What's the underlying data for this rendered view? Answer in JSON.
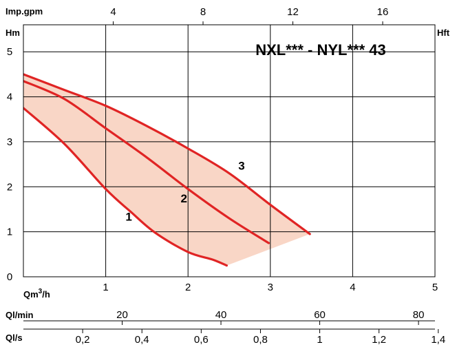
{
  "chart_data": {
    "type": "line",
    "title": "NXL*** - NYL*** 43",
    "ylabel_left": "Hm",
    "ylabel_right": "Hft",
    "xlabel": "Qm³/h",
    "xlabel_main": "Qm",
    "xlabel_sup": "3",
    "xlabel_tail": "/h",
    "xlim": [
      0,
      5
    ],
    "ylim": [
      0,
      5.6
    ],
    "grid": true,
    "x_ticks": [
      1,
      2,
      3,
      4,
      5
    ],
    "x_tick_labels": [
      "1",
      "2",
      "3",
      "4",
      "5"
    ],
    "y_ticks": [
      0,
      1,
      2,
      3,
      4,
      5
    ],
    "y_tick_labels": [
      "0",
      "1",
      "2",
      "3",
      "4",
      "5"
    ],
    "top_axis": {
      "label": "Imp.gpm",
      "ticks": [
        4,
        8,
        12,
        16
      ],
      "tick_labels": [
        "4",
        "8",
        "12",
        "16"
      ],
      "m3h_per_unit": 0.2728
    },
    "ql_min_axis": {
      "label": "Ql/min",
      "ticks": [
        20,
        40,
        60,
        80
      ],
      "tick_labels": [
        "20",
        "40",
        "60",
        "80"
      ],
      "m3h_per_unit": 0.06
    },
    "ql_s_axis": {
      "label": "Ql/s",
      "ticks": [
        0.2,
        0.4,
        0.6,
        0.8,
        1,
        1.2,
        1.4
      ],
      "tick_labels": [
        "0,2",
        "0,4",
        "0,6",
        "0,8",
        "1",
        "1,2",
        "1,4"
      ],
      "m3h_per_unit": 3.6
    },
    "series": [
      {
        "name": "1",
        "x": [
          0,
          0.5,
          1.0,
          1.3,
          1.6,
          2.0,
          2.3,
          2.47
        ],
        "y": [
          3.75,
          2.95,
          1.95,
          1.45,
          0.98,
          0.55,
          0.38,
          0.25
        ]
      },
      {
        "name": "2",
        "x": [
          0,
          0.5,
          1.0,
          1.5,
          2.0,
          2.5,
          2.98
        ],
        "y": [
          4.35,
          3.95,
          3.3,
          2.65,
          1.95,
          1.3,
          0.75
        ]
      },
      {
        "name": "3",
        "x": [
          0,
          0.5,
          1.0,
          1.5,
          2.0,
          2.5,
          3.0,
          3.48
        ],
        "y": [
          4.5,
          4.15,
          3.8,
          3.35,
          2.85,
          2.3,
          1.6,
          0.95
        ]
      }
    ],
    "series_label_pos": [
      {
        "x": 1.28,
        "y": 1.25
      },
      {
        "x": 1.95,
        "y": 1.65
      },
      {
        "x": 2.65,
        "y": 2.38
      }
    ],
    "colors": {
      "curve": "#e02424",
      "fill": "#f9d6c6",
      "title": "#e02424",
      "grid": "#000000"
    }
  }
}
